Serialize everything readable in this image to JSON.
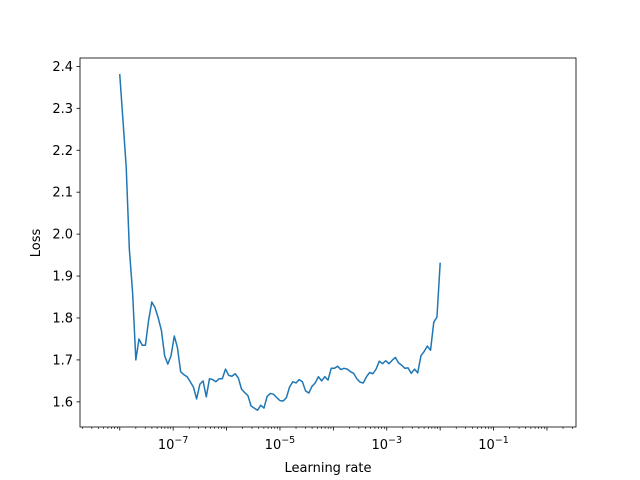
{
  "chart_data": {
    "type": "line",
    "title": "",
    "xlabel": "Learning rate",
    "ylabel": "Loss",
    "xscale": "log",
    "xlim": [
      1.8e-09,
      3.5
    ],
    "ylim": [
      1.54,
      2.42
    ],
    "grid": false,
    "x_ticks": [
      {
        "value": 1e-07,
        "base": "10",
        "exp": "−7"
      },
      {
        "value": 1e-05,
        "base": "10",
        "exp": "−5"
      },
      {
        "value": 0.001,
        "base": "10",
        "exp": "−3"
      },
      {
        "value": 0.1,
        "base": "10",
        "exp": "−1"
      }
    ],
    "y_ticks": [
      "1.6",
      "1.7",
      "1.8",
      "1.9",
      "2.0",
      "2.1",
      "2.2",
      "2.3",
      "2.4"
    ],
    "series": [
      {
        "color": "#1f77b4",
        "points": [
          [
            1e-08,
            2.38
          ],
          [
            1.15e-08,
            2.27
          ],
          [
            1.32e-08,
            2.16
          ],
          [
            1.51e-08,
            1.965
          ],
          [
            1.74e-08,
            1.86
          ],
          [
            2e-08,
            1.7
          ],
          [
            2.29e-08,
            1.75
          ],
          [
            2.63e-08,
            1.735
          ],
          [
            3.02e-08,
            1.735
          ],
          [
            3.47e-08,
            1.795
          ],
          [
            3.98e-08,
            1.838
          ],
          [
            4.57e-08,
            1.825
          ],
          [
            5.25e-08,
            1.8
          ],
          [
            6.03e-08,
            1.77
          ],
          [
            6.92e-08,
            1.71
          ],
          [
            7.94e-08,
            1.69
          ],
          [
            9.12e-08,
            1.71
          ],
          [
            1.05e-07,
            1.757
          ],
          [
            1.2e-07,
            1.73
          ],
          [
            1.38e-07,
            1.672
          ],
          [
            1.58e-07,
            1.665
          ],
          [
            1.82e-07,
            1.66
          ],
          [
            2.09e-07,
            1.648
          ],
          [
            2.4e-07,
            1.635
          ],
          [
            2.75e-07,
            1.607
          ],
          [
            3.16e-07,
            1.642
          ],
          [
            3.63e-07,
            1.65
          ],
          [
            4.17e-07,
            1.612
          ],
          [
            4.79e-07,
            1.655
          ],
          [
            5.5e-07,
            1.653
          ],
          [
            6.31e-07,
            1.648
          ],
          [
            7.24e-07,
            1.655
          ],
          [
            8.32e-07,
            1.655
          ],
          [
            9.55e-07,
            1.678
          ],
          [
            1.1e-06,
            1.663
          ],
          [
            1.26e-06,
            1.661
          ],
          [
            1.45e-06,
            1.667
          ],
          [
            1.66e-06,
            1.657
          ],
          [
            1.91e-06,
            1.63
          ],
          [
            2.19e-06,
            1.622
          ],
          [
            2.51e-06,
            1.615
          ],
          [
            2.88e-06,
            1.59
          ],
          [
            3.31e-06,
            1.585
          ],
          [
            3.8e-06,
            1.58
          ],
          [
            4.37e-06,
            1.592
          ],
          [
            5.01e-06,
            1.585
          ],
          [
            5.75e-06,
            1.613
          ],
          [
            6.61e-06,
            1.62
          ],
          [
            7.59e-06,
            1.618
          ],
          [
            8.71e-06,
            1.61
          ],
          [
            1e-05,
            1.603
          ],
          [
            1.15e-05,
            1.602
          ],
          [
            1.32e-05,
            1.61
          ],
          [
            1.51e-05,
            1.635
          ],
          [
            1.74e-05,
            1.648
          ],
          [
            2e-05,
            1.645
          ],
          [
            2.29e-05,
            1.653
          ],
          [
            2.63e-05,
            1.648
          ],
          [
            3.02e-05,
            1.626
          ],
          [
            3.47e-05,
            1.621
          ],
          [
            3.98e-05,
            1.637
          ],
          [
            4.57e-05,
            1.645
          ],
          [
            5.25e-05,
            1.66
          ],
          [
            6.03e-05,
            1.65
          ],
          [
            6.92e-05,
            1.66
          ],
          [
            7.94e-05,
            1.652
          ],
          [
            9.12e-05,
            1.68
          ],
          [
            0.000105,
            1.68
          ],
          [
            0.00012,
            1.685
          ],
          [
            0.000138,
            1.677
          ],
          [
            0.000158,
            1.68
          ],
          [
            0.000182,
            1.678
          ],
          [
            0.000209,
            1.672
          ],
          [
            0.00024,
            1.668
          ],
          [
            0.000275,
            1.655
          ],
          [
            0.000316,
            1.647
          ],
          [
            0.000363,
            1.645
          ],
          [
            0.000417,
            1.66
          ],
          [
            0.000479,
            1.67
          ],
          [
            0.00055,
            1.667
          ],
          [
            0.000631,
            1.678
          ],
          [
            0.000724,
            1.697
          ],
          [
            0.000832,
            1.691
          ],
          [
            0.000955,
            1.698
          ],
          [
            0.0011,
            1.691
          ],
          [
            0.00126,
            1.699
          ],
          [
            0.00145,
            1.706
          ],
          [
            0.00166,
            1.693
          ],
          [
            0.00191,
            1.687
          ],
          [
            0.00219,
            1.68
          ],
          [
            0.00251,
            1.681
          ],
          [
            0.00288,
            1.668
          ],
          [
            0.00331,
            1.678
          ],
          [
            0.0038,
            1.669
          ],
          [
            0.00437,
            1.71
          ],
          [
            0.00501,
            1.72
          ],
          [
            0.00575,
            1.733
          ],
          [
            0.00661,
            1.723
          ],
          [
            0.00759,
            1.79
          ],
          [
            0.00871,
            1.802
          ],
          [
            0.01,
            1.93
          ]
        ]
      }
    ]
  }
}
